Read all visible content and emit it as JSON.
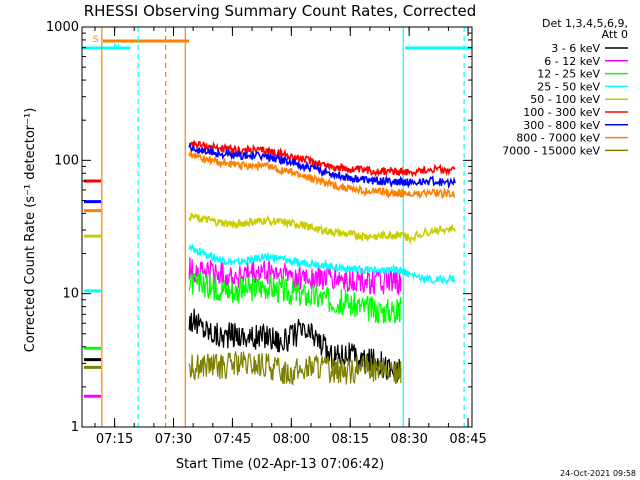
{
  "chart_data": {
    "type": "line",
    "title": "RHESSI Observing Summary Count Rates, Corrected",
    "xlabel": "Start Time (02-Apr-13 07:06:42)",
    "ylabel": "Corrected Count Rate (s⁻¹ detector⁻¹)",
    "xlim": [
      "07:06:42",
      "08:46:00"
    ],
    "ylim": [
      1,
      1000
    ],
    "yscale": "log",
    "xticks": [
      "07:15",
      "07:30",
      "07:45",
      "08:00",
      "08:15",
      "08:30",
      "08:45"
    ],
    "yticks": [
      "1",
      "10",
      "100",
      "1000"
    ],
    "detectors_line1": "Det 1,3,4,5,6,9,",
    "detectors_line2": "Att 0",
    "timestamp": "24-Oct-2021 09:58",
    "flags": {
      "saa_label": "S",
      "night_label": "N"
    },
    "series": [
      {
        "name": "3 - 6 keV",
        "color": "#000000",
        "points": [
          [
            "07:34",
            6.5
          ],
          [
            "07:38",
            5.5
          ],
          [
            "07:42",
            4.8
          ],
          [
            "07:46",
            5.0
          ],
          [
            "07:50",
            4.6
          ],
          [
            "07:54",
            4.9
          ],
          [
            "07:58",
            4.3
          ],
          [
            "08:02",
            5.2
          ],
          [
            "08:06",
            4.8
          ],
          [
            "08:10",
            3.4
          ],
          [
            "08:14",
            3.6
          ],
          [
            "08:18",
            3.1
          ],
          [
            "08:22",
            3.2
          ],
          [
            "08:26",
            2.6
          ],
          [
            "08:28",
            2.6
          ]
        ]
      },
      {
        "name": "6 - 12 keV",
        "color": "#ff00ff",
        "points": [
          [
            "07:34",
            15
          ],
          [
            "07:38",
            14.5
          ],
          [
            "07:42",
            14
          ],
          [
            "07:46",
            13.5
          ],
          [
            "07:50",
            14
          ],
          [
            "07:54",
            14.5
          ],
          [
            "07:58",
            14
          ],
          [
            "08:02",
            13.5
          ],
          [
            "08:06",
            13
          ],
          [
            "08:10",
            13
          ],
          [
            "08:14",
            12.5
          ],
          [
            "08:18",
            12.5
          ],
          [
            "08:22",
            12.5
          ],
          [
            "08:26",
            12
          ],
          [
            "08:28",
            12
          ]
        ]
      },
      {
        "name": "12 - 25 keV",
        "color": "#00ff00",
        "points": [
          [
            "07:34",
            12
          ],
          [
            "07:38",
            11.5
          ],
          [
            "07:42",
            11
          ],
          [
            "07:46",
            10.5
          ],
          [
            "07:50",
            11
          ],
          [
            "07:54",
            11.5
          ],
          [
            "07:58",
            10.5
          ],
          [
            "08:02",
            10
          ],
          [
            "08:06",
            9.5
          ],
          [
            "08:10",
            9
          ],
          [
            "08:14",
            8.5
          ],
          [
            "08:18",
            8
          ],
          [
            "08:22",
            7.5
          ],
          [
            "08:26",
            7.5
          ],
          [
            "08:28",
            7.5
          ]
        ]
      },
      {
        "name": "25 - 50 keV",
        "color": "#00ffff",
        "points": [
          [
            "07:34",
            22
          ],
          [
            "07:38",
            20
          ],
          [
            "07:42",
            18
          ],
          [
            "07:46",
            17
          ],
          [
            "07:50",
            18
          ],
          [
            "07:54",
            19
          ],
          [
            "07:58",
            18
          ],
          [
            "08:02",
            17
          ],
          [
            "08:06",
            17
          ],
          [
            "08:10",
            16
          ],
          [
            "08:14",
            15.5
          ],
          [
            "08:18",
            15
          ],
          [
            "08:22",
            15
          ],
          [
            "08:26",
            15
          ],
          [
            "08:28",
            15
          ],
          [
            "08:30",
            14
          ],
          [
            "08:36",
            12.5
          ],
          [
            "08:42",
            13
          ]
        ]
      },
      {
        "name": "50 - 100 keV",
        "color": "#cccc00",
        "points": [
          [
            "07:34",
            38
          ],
          [
            "07:38",
            36
          ],
          [
            "07:42",
            34
          ],
          [
            "07:46",
            33
          ],
          [
            "07:50",
            34.5
          ],
          [
            "07:54",
            35.5
          ],
          [
            "07:58",
            34
          ],
          [
            "08:02",
            33
          ],
          [
            "08:06",
            31
          ],
          [
            "08:10",
            29
          ],
          [
            "08:14",
            28
          ],
          [
            "08:18",
            27
          ],
          [
            "08:22",
            27
          ],
          [
            "08:26",
            27.5
          ],
          [
            "08:28",
            27.5
          ],
          [
            "08:30",
            26
          ],
          [
            "08:36",
            30
          ],
          [
            "08:42",
            31
          ]
        ]
      },
      {
        "name": "100 - 300 keV",
        "color": "#ff0000",
        "points": [
          [
            "07:34",
            135
          ],
          [
            "07:38",
            128
          ],
          [
            "07:42",
            123
          ],
          [
            "07:46",
            118
          ],
          [
            "07:50",
            119
          ],
          [
            "07:54",
            117
          ],
          [
            "07:58",
            111
          ],
          [
            "08:02",
            103
          ],
          [
            "08:06",
            97
          ],
          [
            "08:10",
            90
          ],
          [
            "08:14",
            86
          ],
          [
            "08:18",
            84
          ],
          [
            "08:22",
            83
          ],
          [
            "08:26",
            83
          ],
          [
            "08:28",
            83
          ],
          [
            "08:30",
            82
          ],
          [
            "08:36",
            86
          ],
          [
            "08:42",
            84
          ]
        ]
      },
      {
        "name": "300 - 800 keV",
        "color": "#0000ff",
        "points": [
          [
            "07:34",
            125
          ],
          [
            "07:38",
            117
          ],
          [
            "07:42",
            112
          ],
          [
            "07:46",
            108
          ],
          [
            "07:50",
            108
          ],
          [
            "07:54",
            106
          ],
          [
            "07:58",
            100
          ],
          [
            "08:02",
            92
          ],
          [
            "08:06",
            86
          ],
          [
            "08:10",
            80
          ],
          [
            "08:14",
            75
          ],
          [
            "08:18",
            72
          ],
          [
            "08:22",
            70
          ],
          [
            "08:26",
            69
          ],
          [
            "08:28",
            69
          ],
          [
            "08:30",
            68
          ],
          [
            "08:36",
            70
          ],
          [
            "08:42",
            67
          ]
        ]
      },
      {
        "name": "800 - 7000 keV",
        "color": "#ff8000",
        "points": [
          [
            "07:34",
            112
          ],
          [
            "07:38",
            102
          ],
          [
            "07:42",
            96
          ],
          [
            "07:46",
            92
          ],
          [
            "07:50",
            92
          ],
          [
            "07:54",
            90
          ],
          [
            "07:58",
            84
          ],
          [
            "08:02",
            78
          ],
          [
            "08:06",
            72
          ],
          [
            "08:10",
            66
          ],
          [
            "08:14",
            62
          ],
          [
            "08:18",
            59
          ],
          [
            "08:22",
            58
          ],
          [
            "08:26",
            57
          ],
          [
            "08:28",
            57
          ],
          [
            "08:30",
            55
          ],
          [
            "08:36",
            57
          ],
          [
            "08:42",
            55
          ]
        ]
      },
      {
        "name": "7000 - 15000 keV",
        "color": "#808000",
        "points": [
          [
            "07:34",
            2.8
          ],
          [
            "07:38",
            2.9
          ],
          [
            "07:42",
            2.8
          ],
          [
            "07:46",
            3.0
          ],
          [
            "07:50",
            2.9
          ],
          [
            "07:54",
            2.9
          ],
          [
            "07:58",
            2.6
          ],
          [
            "08:02",
            2.6
          ],
          [
            "08:06",
            2.9
          ],
          [
            "08:10",
            2.7
          ],
          [
            "08:14",
            2.6
          ],
          [
            "08:18",
            2.8
          ],
          [
            "08:22",
            2.7
          ],
          [
            "08:26",
            2.6
          ],
          [
            "08:28",
            2.6
          ]
        ]
      }
    ],
    "pre_gap_points": {
      "3 - 6 keV": 3.2,
      "6 - 12 keV": 1.7,
      "12 - 25 keV": 3.9,
      "25 - 50 keV": 10.5,
      "50 - 100 keV": 27,
      "100 - 300 keV": 70,
      "300 - 800 keV": 49,
      "800 - 7000 keV": 42,
      "7000 - 15000 keV": 2.8
    },
    "attenuator_bars": [
      {
        "label": "S",
        "color": "#ff8000",
        "start": "07:12:00",
        "end": "07:34:00"
      },
      {
        "label": "N",
        "color": "#00ffff",
        "start": "07:06:42",
        "end": "07:19:00"
      },
      {
        "label": "",
        "color": "#00ffff",
        "start": "08:29:00",
        "end": "08:46:00"
      }
    ],
    "vertical_markers": [
      {
        "time": "07:11:45",
        "color": "#ff8000",
        "style": "solid"
      },
      {
        "time": "07:28:00",
        "color": "#ff8000",
        "style": "dashed"
      },
      {
        "time": "07:33:00",
        "color": "#ff8000",
        "style": "solid"
      },
      {
        "time": "07:21:00",
        "color": "#00ffff",
        "style": "dashed"
      },
      {
        "time": "08:28:30",
        "color": "#00ffff",
        "style": "solid"
      },
      {
        "time": "08:44:00",
        "color": "#00ffff",
        "style": "dashed"
      }
    ]
  }
}
